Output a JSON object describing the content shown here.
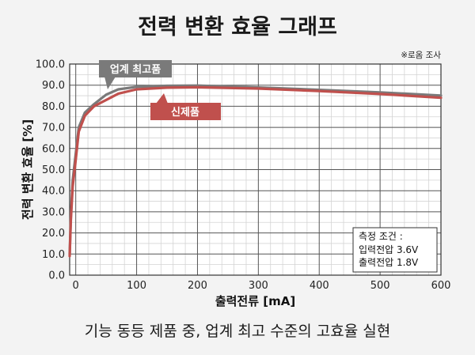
{
  "chart_data": {
    "type": "line",
    "title": "전력 변환 효율 그래프",
    "footnote": "※로옴 조사",
    "caption": "기능 동등 제품 중, 업계 최고 수준의 고효율 실현",
    "xlabel": "출력전류 [mA]",
    "ylabel": "전력 변환 효율 [%]",
    "xlim": [
      -10,
      600
    ],
    "ylim": [
      0,
      100
    ],
    "x_ticks": [
      "0",
      "100",
      "200",
      "300",
      "400",
      "500",
      "600"
    ],
    "x_tick_values": [
      0,
      100,
      200,
      300,
      400,
      500,
      600
    ],
    "y_ticks": [
      "0.0",
      "10.0",
      "20.0",
      "30.0",
      "40.0",
      "50.0",
      "60.0",
      "70.0",
      "80.0",
      "90.0",
      "100.0"
    ],
    "y_tick_values": [
      0,
      10,
      20,
      30,
      40,
      50,
      60,
      70,
      80,
      90,
      100
    ],
    "grid": true,
    "series": [
      {
        "name": "업계 최고품",
        "color": "#7a7a7a",
        "x": [
          -10,
          -8,
          -5,
          -1,
          5,
          15,
          30,
          50,
          70,
          100,
          150,
          200,
          300,
          400,
          500,
          600
        ],
        "y": [
          10,
          28,
          45,
          55,
          70,
          77,
          81,
          85.5,
          88,
          89.2,
          89.7,
          89.8,
          88.9,
          87.8,
          86.6,
          85.1
        ]
      },
      {
        "name": "신제품",
        "color": "#c0504d",
        "x": [
          -10,
          -8,
          -5,
          -1,
          5,
          15,
          30,
          50,
          70,
          100,
          150,
          200,
          300,
          400,
          500,
          600
        ],
        "y": [
          9,
          26,
          42,
          52,
          68,
          75.5,
          80,
          83,
          86,
          88,
          88.8,
          89,
          88.4,
          87.2,
          85.8,
          84
        ]
      }
    ],
    "conditions": {
      "heading": "측정 조건 :",
      "lines": [
        "입력전압 3.6V",
        "출력전압 1.8V"
      ]
    }
  }
}
